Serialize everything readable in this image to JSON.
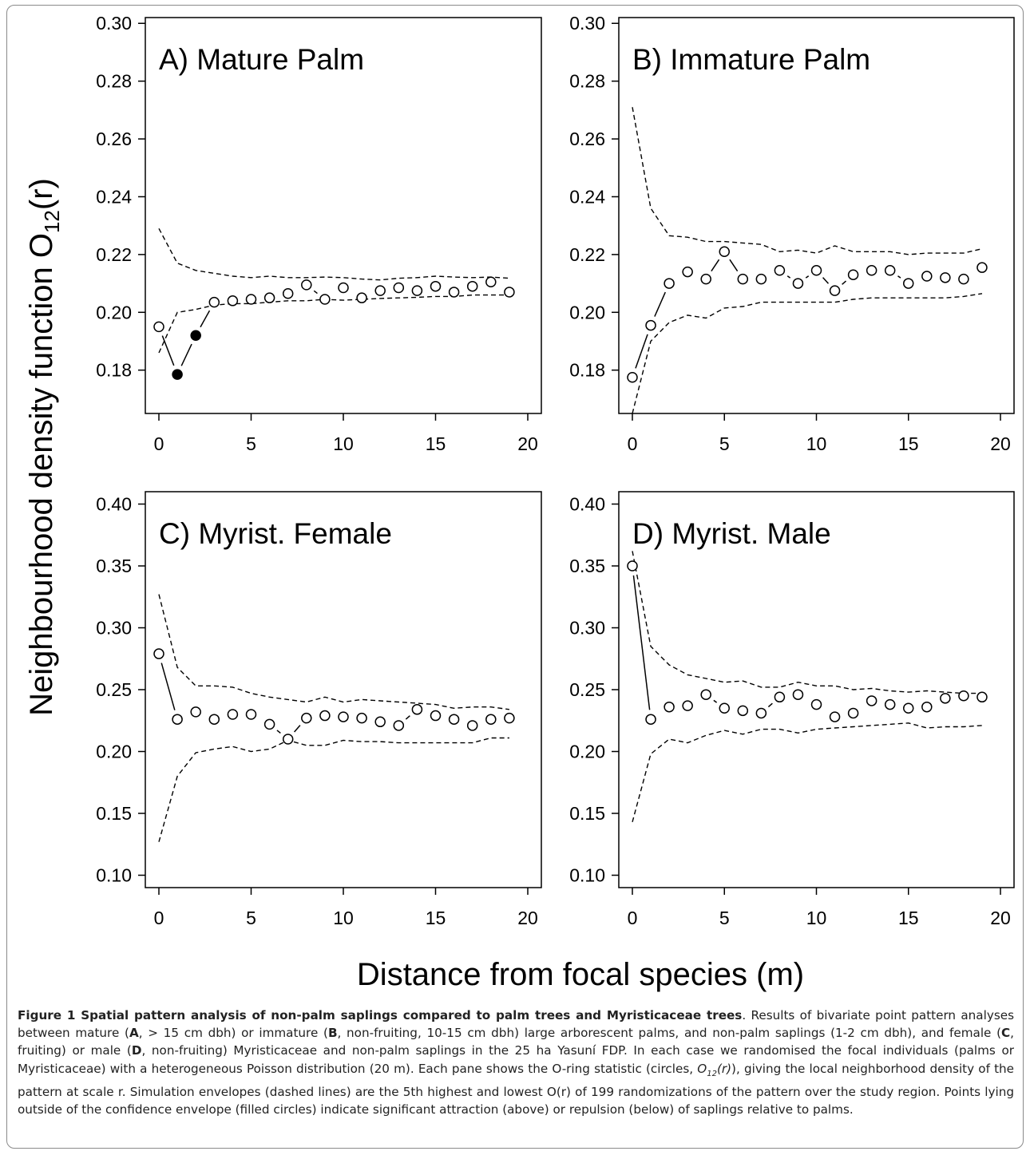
{
  "figure": {
    "ylabel_main": "Neighbourhood density function O",
    "ylabel_sub": "12",
    "ylabel_tail": "(r)",
    "xlabel": "Distance from focal species (m)"
  },
  "chart_data": [
    {
      "type": "scatter",
      "title": "A) Mature Palm",
      "xlim": [
        0,
        20
      ],
      "ylim": [
        0.165,
        0.302
      ],
      "xticks": [
        "0",
        "5",
        "10",
        "15",
        "20"
      ],
      "yticks": [
        "0.18",
        "0.20",
        "0.22",
        "0.24",
        "0.26",
        "0.28",
        "0.30"
      ],
      "x": [
        0,
        1,
        2,
        3,
        4,
        5,
        6,
        7,
        8,
        9,
        10,
        11,
        12,
        13,
        14,
        15,
        16,
        17,
        18,
        19
      ],
      "observed": [
        0.195,
        0.1785,
        0.192,
        0.2035,
        0.204,
        0.2045,
        0.205,
        0.2065,
        0.2095,
        0.2045,
        0.2085,
        0.205,
        0.2075,
        0.2085,
        0.2075,
        0.209,
        0.207,
        0.209,
        0.2105,
        0.207
      ],
      "significant": [
        false,
        true,
        true,
        false,
        false,
        false,
        false,
        false,
        false,
        false,
        false,
        false,
        false,
        false,
        false,
        false,
        false,
        false,
        false,
        false
      ],
      "upper_envelope": [
        0.229,
        0.217,
        0.2145,
        0.2135,
        0.2125,
        0.212,
        0.2125,
        0.212,
        0.212,
        0.2122,
        0.212,
        0.2115,
        0.2112,
        0.2118,
        0.212,
        0.2125,
        0.2122,
        0.212,
        0.2122,
        0.2118
      ],
      "lower_envelope": [
        0.186,
        0.2,
        0.201,
        0.2025,
        0.203,
        0.203,
        0.2035,
        0.204,
        0.204,
        0.2045,
        0.2042,
        0.2045,
        0.2048,
        0.205,
        0.2052,
        0.2055,
        0.2055,
        0.206,
        0.206,
        0.206
      ]
    },
    {
      "type": "scatter",
      "title": "B) Immature Palm",
      "xlim": [
        0,
        20
      ],
      "ylim": [
        0.165,
        0.302
      ],
      "xticks": [
        "0",
        "5",
        "10",
        "15",
        "20"
      ],
      "yticks": [
        "0.18",
        "0.20",
        "0.22",
        "0.24",
        "0.26",
        "0.28",
        "0.30"
      ],
      "x": [
        0,
        1,
        2,
        3,
        4,
        5,
        6,
        7,
        8,
        9,
        10,
        11,
        12,
        13,
        14,
        15,
        16,
        17,
        18,
        19
      ],
      "observed": [
        0.1775,
        0.1955,
        0.21,
        0.214,
        0.2115,
        0.221,
        0.2115,
        0.2115,
        0.2145,
        0.21,
        0.2145,
        0.2075,
        0.213,
        0.2145,
        0.2145,
        0.21,
        0.2125,
        0.212,
        0.2115,
        0.2155
      ],
      "significant": [
        false,
        false,
        false,
        false,
        false,
        false,
        false,
        false,
        false,
        false,
        false,
        false,
        false,
        false,
        false,
        false,
        false,
        false,
        false,
        false
      ],
      "upper_envelope": [
        0.271,
        0.236,
        0.2265,
        0.226,
        0.2245,
        0.2245,
        0.224,
        0.2235,
        0.221,
        0.2215,
        0.2205,
        0.223,
        0.221,
        0.221,
        0.221,
        0.22,
        0.2205,
        0.2205,
        0.2205,
        0.222
      ],
      "lower_envelope": [
        0.165,
        0.19,
        0.1965,
        0.199,
        0.198,
        0.2015,
        0.202,
        0.2035,
        0.2035,
        0.2035,
        0.2035,
        0.2035,
        0.2045,
        0.205,
        0.205,
        0.205,
        0.205,
        0.205,
        0.2055,
        0.2065
      ]
    },
    {
      "type": "scatter",
      "title": "C) Myrist. Female",
      "xlim": [
        0,
        20
      ],
      "ylim": [
        0.09,
        0.41
      ],
      "xticks": [
        "0",
        "5",
        "10",
        "15",
        "20"
      ],
      "yticks": [
        "0.10",
        "0.15",
        "0.20",
        "0.25",
        "0.30",
        "0.35",
        "0.40"
      ],
      "x": [
        0,
        1,
        2,
        3,
        4,
        5,
        6,
        7,
        8,
        9,
        10,
        11,
        12,
        13,
        14,
        15,
        16,
        17,
        18,
        19
      ],
      "observed": [
        0.279,
        0.226,
        0.232,
        0.226,
        0.23,
        0.23,
        0.222,
        0.21,
        0.227,
        0.229,
        0.228,
        0.227,
        0.224,
        0.221,
        0.234,
        0.229,
        0.226,
        0.221,
        0.226,
        0.227
      ],
      "significant": [
        false,
        false,
        false,
        false,
        false,
        false,
        false,
        false,
        false,
        false,
        false,
        false,
        false,
        false,
        false,
        false,
        false,
        false,
        false,
        false
      ],
      "upper_envelope": [
        0.327,
        0.268,
        0.253,
        0.253,
        0.252,
        0.247,
        0.244,
        0.242,
        0.24,
        0.244,
        0.24,
        0.242,
        0.241,
        0.24,
        0.239,
        0.238,
        0.235,
        0.236,
        0.236,
        0.234
      ],
      "lower_envelope": [
        0.127,
        0.18,
        0.199,
        0.202,
        0.204,
        0.2,
        0.202,
        0.209,
        0.205,
        0.205,
        0.209,
        0.208,
        0.208,
        0.207,
        0.207,
        0.207,
        0.207,
        0.207,
        0.211,
        0.211
      ]
    },
    {
      "type": "scatter",
      "title": "D) Myrist. Male",
      "xlim": [
        0,
        20
      ],
      "ylim": [
        0.09,
        0.41
      ],
      "xticks": [
        "0",
        "5",
        "10",
        "15",
        "20"
      ],
      "yticks": [
        "0.10",
        "0.15",
        "0.20",
        "0.25",
        "0.30",
        "0.35",
        "0.40"
      ],
      "x": [
        0,
        1,
        2,
        3,
        4,
        5,
        6,
        7,
        8,
        9,
        10,
        11,
        12,
        13,
        14,
        15,
        16,
        17,
        18,
        19
      ],
      "observed": [
        0.35,
        0.226,
        0.236,
        0.237,
        0.246,
        0.235,
        0.233,
        0.231,
        0.244,
        0.246,
        0.238,
        0.228,
        0.231,
        0.241,
        0.238,
        0.235,
        0.236,
        0.243,
        0.245,
        0.244
      ],
      "significant": [
        false,
        false,
        false,
        false,
        false,
        false,
        false,
        false,
        false,
        false,
        false,
        false,
        false,
        false,
        false,
        false,
        false,
        false,
        false,
        false
      ],
      "upper_envelope": [
        0.362,
        0.285,
        0.27,
        0.262,
        0.259,
        0.256,
        0.257,
        0.252,
        0.252,
        0.256,
        0.253,
        0.253,
        0.25,
        0.251,
        0.249,
        0.248,
        0.249,
        0.248,
        0.247,
        0.247
      ],
      "lower_envelope": [
        0.143,
        0.198,
        0.21,
        0.207,
        0.213,
        0.217,
        0.214,
        0.218,
        0.218,
        0.215,
        0.218,
        0.219,
        0.22,
        0.221,
        0.222,
        0.223,
        0.219,
        0.22,
        0.22,
        0.221
      ]
    }
  ],
  "caption": {
    "title": "Figure 1 Spatial pattern analysis of non-palm saplings compared to palm trees and Myristicaceae trees",
    "parts": [
      {
        "t": ". Results of bivariate point pattern analyses between mature (",
        "s": "n"
      },
      {
        "t": "A",
        "s": "b"
      },
      {
        "t": ", > 15 cm dbh) or immature (",
        "s": "n"
      },
      {
        "t": "B",
        "s": "b"
      },
      {
        "t": ", non-fruiting, 10-15 cm dbh) large arborescent palms, and non-palm saplings (1-2 cm dbh), and female (",
        "s": "n"
      },
      {
        "t": "C",
        "s": "b"
      },
      {
        "t": ", fruiting) or male (",
        "s": "n"
      },
      {
        "t": "D",
        "s": "b"
      },
      {
        "t": ", non-fruiting) Myristicaceae and non-palm saplings in the 25 ha Yasuní FDP. In each case we randomised the focal individuals (palms or Myristicaceae) with a heterogeneous Poisson distribution (20 m). Each pane shows the O-ring statistic (circles, ",
        "s": "n"
      },
      {
        "t": "O",
        "s": "i"
      },
      {
        "t": "12",
        "s": "isub"
      },
      {
        "t": "(r)",
        "s": "i"
      },
      {
        "t": "), giving the local neighborhood density of the pattern at scale r. Simulation envelopes (dashed lines) are the 5th highest and lowest O(r) of 199 randomizations of the pattern over the study region. Points lying outside of the confidence envelope (filled circles) indicate significant attraction (above) or repulsion (below) of saplings relative to palms.",
        "s": "n"
      }
    ]
  }
}
